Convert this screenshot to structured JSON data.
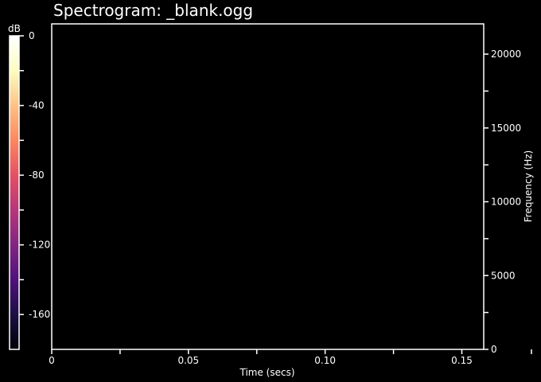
{
  "chart_data": {
    "type": "heatmap",
    "title": "Spectrogram: _blank.ogg",
    "xlabel": "Time (secs)",
    "ylabel": "Frequency (Hz)",
    "xlim": [
      0,
      0.158
    ],
    "ylim": [
      0,
      22050
    ],
    "x_ticks": [
      "0",
      "0.05",
      "0.10",
      "0.15"
    ],
    "x_tick_values": [
      0,
      0.05,
      0.1,
      0.15
    ],
    "x_minor_tick_values": [
      0.025,
      0.075,
      0.125
    ],
    "y_ticks": [
      "0",
      "5000",
      "10000",
      "15000",
      "20000"
    ],
    "y_tick_values": [
      0,
      5000,
      10000,
      15000,
      20000
    ],
    "y_minor_tick_values": [
      2500,
      7500,
      12500,
      17500
    ],
    "colorbar": {
      "label": "dB",
      "ticks": [
        "0",
        "-40",
        "-80",
        "-120",
        "-160"
      ],
      "tick_values": [
        0,
        -40,
        -80,
        -120,
        -160
      ],
      "minor_tick_values": [
        -20,
        -60,
        -100,
        -140
      ],
      "range": [
        -180,
        0
      ],
      "colormap": [
        "#000004",
        "#1c1044",
        "#4f127b",
        "#812581",
        "#b5367a",
        "#e55064",
        "#fb8761",
        "#fec287",
        "#fcfdbf",
        "#ffffff"
      ]
    },
    "values": [],
    "grid": false
  },
  "colors": {
    "background": "#000000",
    "foreground": "#ffffff",
    "plot_fill": "#000000"
  }
}
